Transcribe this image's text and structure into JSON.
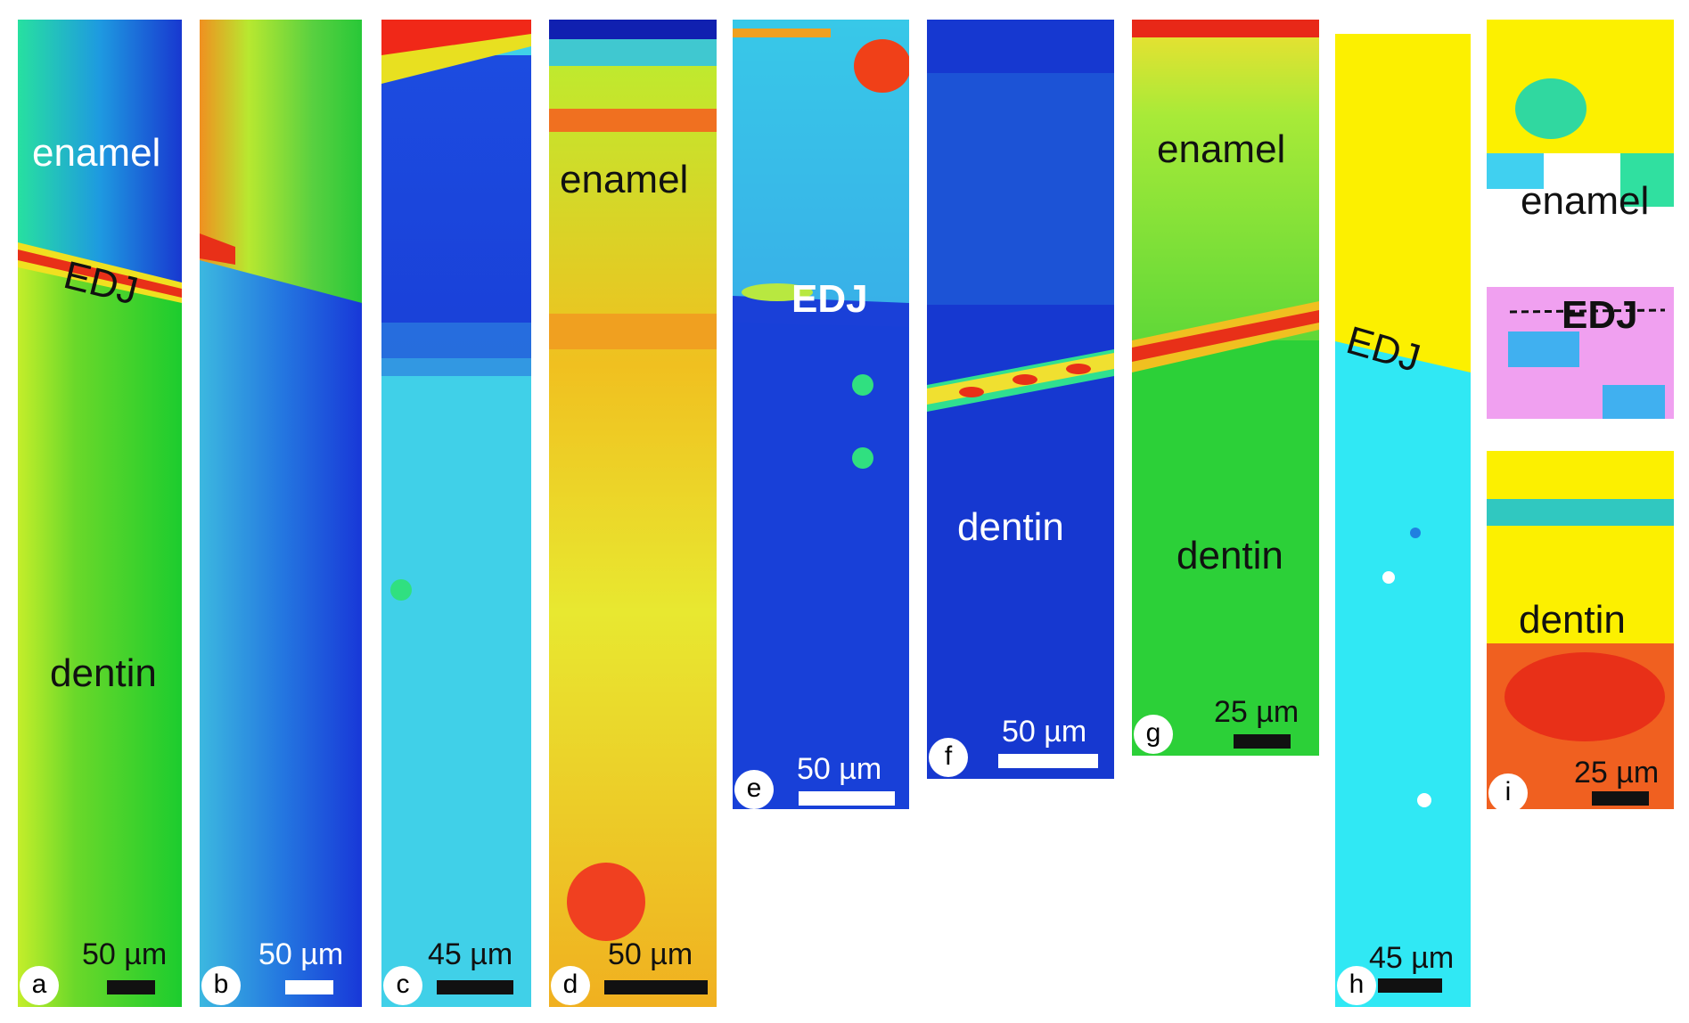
{
  "panels": [
    {
      "id": "a",
      "badge": "a",
      "scale": "50 µm",
      "labels": {
        "enamel": "enamel",
        "edj": "EDJ",
        "dentin": "dentin"
      }
    },
    {
      "id": "b",
      "badge": "b",
      "scale": "50 µm"
    },
    {
      "id": "c",
      "badge": "c",
      "scale": "45 µm"
    },
    {
      "id": "d",
      "badge": "d",
      "scale": "50 µm",
      "labels": {
        "enamel": "enamel"
      }
    },
    {
      "id": "e",
      "badge": "e",
      "scale": "50 µm",
      "labels": {
        "edj": "EDJ"
      }
    },
    {
      "id": "f",
      "badge": "f",
      "scale": "50 µm",
      "labels": {
        "dentin": "dentin"
      }
    },
    {
      "id": "g",
      "badge": "g",
      "scale": "25 µm",
      "labels": {
        "enamel": "enamel",
        "dentin": "dentin"
      }
    },
    {
      "id": "h",
      "badge": "h",
      "scale": "45 µm",
      "labels": {
        "edj": "EDJ"
      }
    },
    {
      "id": "i",
      "badge": "i",
      "scale": "25 µm",
      "labels": {
        "enamel": "enamel",
        "edj": "EDJ",
        "dentin": "dentin"
      }
    }
  ]
}
